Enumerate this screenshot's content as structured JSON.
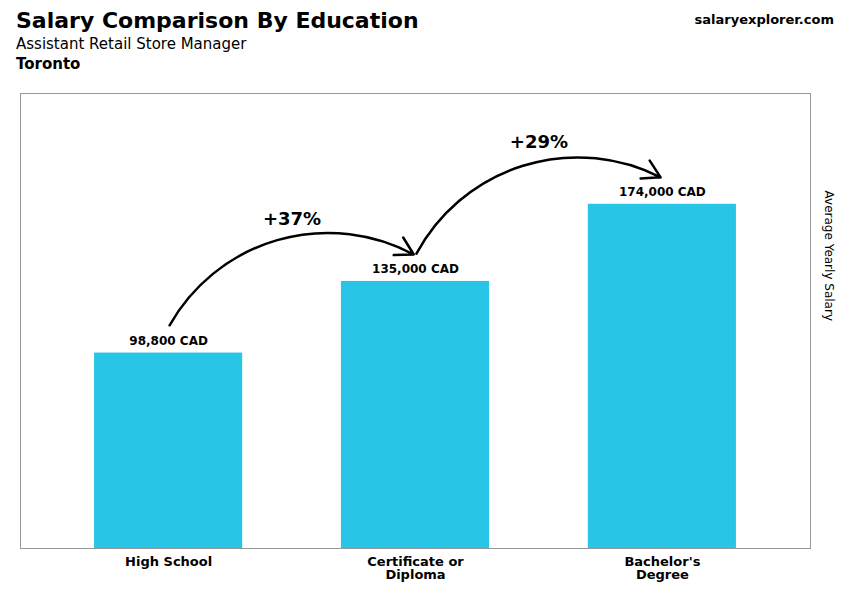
{
  "chart_data": {
    "type": "bar",
    "title": "Salary Comparison By Education",
    "subtitle": "Assistant Retail Store Manager",
    "ylabel": "Average Yearly Salary",
    "categories": [
      "High School",
      "Certificate or\nDiploma",
      "Bachelor's\nDegree"
    ],
    "values": [
      98800,
      135000,
      174000
    ],
    "value_labels": [
      "98,800 CAD",
      "135,000 CAD",
      "174,000 CAD"
    ],
    "data_labels": true,
    "color": "#29c5e6",
    "ylim": [
      0,
      230000
    ],
    "tick_labels": "x",
    "annotations": [
      {
        "text": "Toronto"
      },
      {
        "text": "salaryexplorer.com"
      },
      {
        "text": "+37%",
        "from": "High School",
        "to": "Certificate or\nDiploma"
      },
      {
        "text": "+29%",
        "from": "Certificate or\nDiploma",
        "to": "Bachelor's\nDegree"
      }
    ]
  }
}
